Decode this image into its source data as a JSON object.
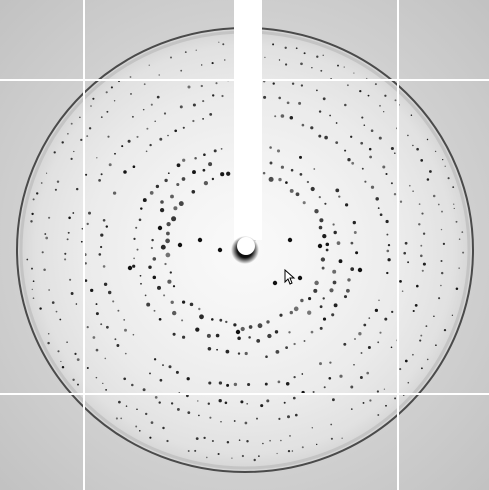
{
  "viewer": {
    "image_kind": "x-ray diffraction pattern",
    "icons": {
      "cursor": "mouse-pointer-icon"
    },
    "colors": {
      "background_edge": "#c7c7c7",
      "plate_fill": "#ececec",
      "plate_center": "#fafafa",
      "plate_rim": "#4a4a4a",
      "spot": "#111111",
      "beamstop": "#ffffff",
      "tile_gap": "#ffffff"
    }
  }
}
